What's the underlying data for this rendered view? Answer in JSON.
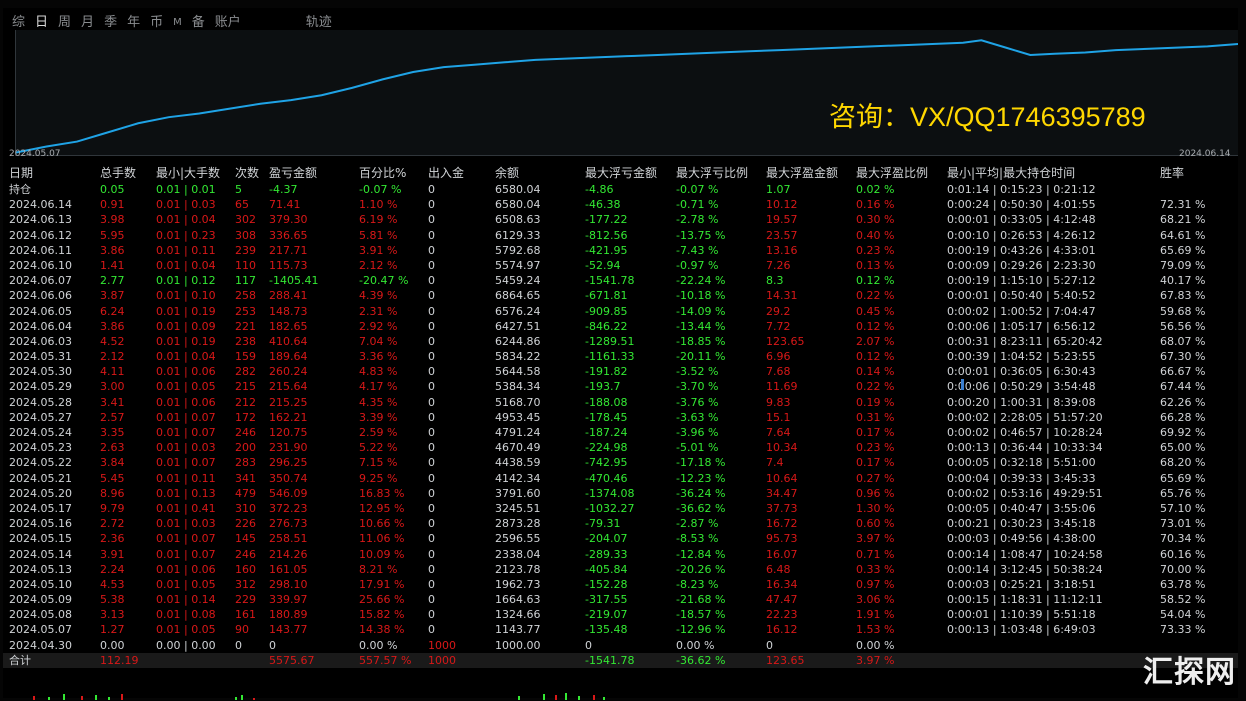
{
  "tabs": [
    {
      "label": "综",
      "active": false
    },
    {
      "label": "日",
      "active": true
    },
    {
      "label": "周",
      "active": false
    },
    {
      "label": "月",
      "active": false
    },
    {
      "label": "季",
      "active": false
    },
    {
      "label": "年",
      "active": false
    },
    {
      "label": "币",
      "active": false
    },
    {
      "label": "M",
      "active": false,
      "small": true
    },
    {
      "label": "备",
      "active": false
    },
    {
      "label": "账户",
      "active": false
    },
    {
      "label": "轨迹",
      "active": false,
      "gap": true
    }
  ],
  "chart": {
    "start_label": "2024.05.07",
    "end_label": "2024.06.14",
    "watermark": "咨询：VX/QQ1746395789",
    "line_color": "#1fa3e6",
    "chart_data": {
      "type": "line",
      "x_range": [
        "2024.05.07",
        "2024.06.14"
      ],
      "ylim": [
        0,
        100
      ],
      "points": [
        [
          0,
          2
        ],
        [
          2.5,
          7
        ],
        [
          5,
          11
        ],
        [
          7,
          17
        ],
        [
          10,
          26
        ],
        [
          12.5,
          31
        ],
        [
          15,
          34
        ],
        [
          17.5,
          38
        ],
        [
          20,
          42
        ],
        [
          22.5,
          45
        ],
        [
          25,
          49
        ],
        [
          27.5,
          55
        ],
        [
          30,
          62
        ],
        [
          32.5,
          68
        ],
        [
          35,
          72
        ],
        [
          37.5,
          74
        ],
        [
          40,
          76
        ],
        [
          42.5,
          78
        ],
        [
          45,
          79
        ],
        [
          47.5,
          80
        ],
        [
          50,
          81
        ],
        [
          52.5,
          82
        ],
        [
          55,
          83
        ],
        [
          57.5,
          84
        ],
        [
          60,
          85
        ],
        [
          62.5,
          86
        ],
        [
          65,
          87
        ],
        [
          67.5,
          88
        ],
        [
          70,
          89
        ],
        [
          72.5,
          90
        ],
        [
          75,
          91
        ],
        [
          77.5,
          92
        ],
        [
          79,
          94
        ],
        [
          81,
          88
        ],
        [
          83,
          82
        ],
        [
          85,
          83
        ],
        [
          87.5,
          84
        ],
        [
          90,
          86
        ],
        [
          92.5,
          87
        ],
        [
          95,
          88
        ],
        [
          97.5,
          89
        ],
        [
          100,
          91
        ]
      ]
    }
  },
  "colors": {
    "profit": "#d81818",
    "loss": "#33e833",
    "neutral": "#d0d3d6"
  },
  "headers": [
    "日期",
    "总手数",
    "最小|大手数",
    "次数",
    "盈亏金额",
    "百分比%",
    "出入金",
    "余额",
    "最大浮亏金额",
    "最大浮亏比例",
    "最大浮盈金额",
    "最大浮盈比例",
    "最小|平均|最大持仓时间",
    "胜率"
  ],
  "rows": [
    {
      "cells": [
        "持仓",
        "0.05",
        "0.01 | 0.01",
        "5",
        "-4.37",
        "-0.07 %",
        "0",
        "6580.04",
        "-4.86",
        "-0.07 %",
        "1.07",
        "0.02 %",
        "0:01:14 | 0:15:23 | 0:21:12",
        ""
      ],
      "tone": "g"
    },
    {
      "cells": [
        "2024.06.14",
        "0.91",
        "0.01 | 0.03",
        "65",
        "71.41",
        "1.10 %",
        "0",
        "6580.04",
        "-46.38",
        "-0.71 %",
        "10.12",
        "0.16 %",
        "0:00:24 | 0:50:30 | 4:01:55",
        "72.31 %"
      ],
      "tone": "r"
    },
    {
      "cells": [
        "2024.06.13",
        "3.98",
        "0.01 | 0.04",
        "302",
        "379.30",
        "6.19 %",
        "0",
        "6508.63",
        "-177.22",
        "-2.78 %",
        "19.57",
        "0.30 %",
        "0:00:01 | 0:33:05 | 4:12:48",
        "68.21 %"
      ],
      "tone": "r"
    },
    {
      "cells": [
        "2024.06.12",
        "5.95",
        "0.01 | 0.23",
        "308",
        "336.65",
        "5.81 %",
        "0",
        "6129.33",
        "-812.56",
        "-13.75 %",
        "23.57",
        "0.40 %",
        "0:00:10 | 0:26:53 | 4:26:12",
        "64.61 %"
      ],
      "tone": "r"
    },
    {
      "cells": [
        "2024.06.11",
        "3.86",
        "0.01 | 0.11",
        "239",
        "217.71",
        "3.91 %",
        "0",
        "5792.68",
        "-421.95",
        "-7.43 %",
        "13.16",
        "0.23 %",
        "0:00:19 | 0:43:26 | 4:33:01",
        "65.69 %"
      ],
      "tone": "r"
    },
    {
      "cells": [
        "2024.06.10",
        "1.41",
        "0.01 | 0.04",
        "110",
        "115.73",
        "2.12 %",
        "0",
        "5574.97",
        "-52.94",
        "-0.97 %",
        "7.26",
        "0.13 %",
        "0:00:09 | 0:29:26 | 2:23:30",
        "79.09 %"
      ],
      "tone": "r"
    },
    {
      "cells": [
        "2024.06.07",
        "2.77",
        "0.01 | 0.12",
        "117",
        "-1405.41",
        "-20.47 %",
        "0",
        "5459.24",
        "-1541.78",
        "-22.24 %",
        "8.3",
        "0.12 %",
        "0:00:19 | 1:15:10 | 5:27:12",
        "40.17 %"
      ],
      "tone": "g"
    },
    {
      "cells": [
        "2024.06.06",
        "3.87",
        "0.01 | 0.10",
        "258",
        "288.41",
        "4.39 %",
        "0",
        "6864.65",
        "-671.81",
        "-10.18 %",
        "14.31",
        "0.22 %",
        "0:00:01 | 0:50:40 | 5:40:52",
        "67.83 %"
      ],
      "tone": "r"
    },
    {
      "cells": [
        "2024.06.05",
        "6.24",
        "0.01 | 0.19",
        "253",
        "148.73",
        "2.31 %",
        "0",
        "6576.24",
        "-909.85",
        "-14.09 %",
        "29.2",
        "0.45 %",
        "0:00:02 | 1:00:52 | 7:04:47",
        "59.68 %"
      ],
      "tone": "r"
    },
    {
      "cells": [
        "2024.06.04",
        "3.86",
        "0.01 | 0.09",
        "221",
        "182.65",
        "2.92 %",
        "0",
        "6427.51",
        "-846.22",
        "-13.44 %",
        "7.72",
        "0.12 %",
        "0:00:06 | 1:05:17 | 6:56:12",
        "56.56 %"
      ],
      "tone": "r"
    },
    {
      "cells": [
        "2024.06.03",
        "4.52",
        "0.01 | 0.19",
        "238",
        "410.64",
        "7.04 %",
        "0",
        "6244.86",
        "-1289.51",
        "-18.85 %",
        "123.65",
        "2.07 %",
        "0:00:31 | 8:23:11 | 65:20:42",
        "68.07 %"
      ],
      "tone": "r"
    },
    {
      "cells": [
        "2024.05.31",
        "2.12",
        "0.01 | 0.04",
        "159",
        "189.64",
        "3.36 %",
        "0",
        "5834.22",
        "-1161.33",
        "-20.11 %",
        "6.96",
        "0.12 %",
        "0:00:39 | 1:04:52 | 5:23:55",
        "67.30 %"
      ],
      "tone": "r"
    },
    {
      "cells": [
        "2024.05.30",
        "4.11",
        "0.01 | 0.06",
        "282",
        "260.24",
        "4.83 %",
        "0",
        "5644.58",
        "-191.82",
        "-3.52 %",
        "7.68",
        "0.14 %",
        "0:00:01 | 0:36:05 | 6:30:43",
        "66.67 %"
      ],
      "tone": "r"
    },
    {
      "cells": [
        "2024.05.29",
        "3.00",
        "0.01 | 0.05",
        "215",
        "215.64",
        "4.17 %",
        "0",
        "5384.34",
        "-193.7",
        "-3.70 %",
        "11.69",
        "0.22 %",
        "0:00:06 | 0:50:29 | 3:54:48",
        "67.44 %"
      ],
      "tone": "r"
    },
    {
      "cells": [
        "2024.05.28",
        "3.41",
        "0.01 | 0.06",
        "212",
        "215.25",
        "4.35 %",
        "0",
        "5168.70",
        "-188.08",
        "-3.76 %",
        "9.83",
        "0.19 %",
        "0:00:20 | 1:00:31 | 8:39:08",
        "62.26 %"
      ],
      "tone": "r"
    },
    {
      "cells": [
        "2024.05.27",
        "2.57",
        "0.01 | 0.07",
        "172",
        "162.21",
        "3.39 %",
        "0",
        "4953.45",
        "-178.45",
        "-3.63 %",
        "15.1",
        "0.31 %",
        "0:00:02 | 2:28:05 | 51:57:20",
        "66.28 %"
      ],
      "tone": "r"
    },
    {
      "cells": [
        "2024.05.24",
        "3.35",
        "0.01 | 0.07",
        "246",
        "120.75",
        "2.59 %",
        "0",
        "4791.24",
        "-187.24",
        "-3.96 %",
        "7.64",
        "0.17 %",
        "0:00:02 | 0:46:57 | 10:28:24",
        "69.92 %"
      ],
      "tone": "r"
    },
    {
      "cells": [
        "2024.05.23",
        "2.63",
        "0.01 | 0.03",
        "200",
        "231.90",
        "5.22 %",
        "0",
        "4670.49",
        "-224.98",
        "-5.01 %",
        "10.34",
        "0.23 %",
        "0:00:13 | 0:36:44 | 10:33:34",
        "65.00 %"
      ],
      "tone": "r"
    },
    {
      "cells": [
        "2024.05.22",
        "3.84",
        "0.01 | 0.07",
        "283",
        "296.25",
        "7.15 %",
        "0",
        "4438.59",
        "-742.95",
        "-17.18 %",
        "7.4",
        "0.17 %",
        "0:00:05 | 0:32:18 | 5:51:00",
        "68.20 %"
      ],
      "tone": "r"
    },
    {
      "cells": [
        "2024.05.21",
        "5.45",
        "0.01 | 0.11",
        "341",
        "350.74",
        "9.25 %",
        "0",
        "4142.34",
        "-470.46",
        "-12.23 %",
        "10.64",
        "0.27 %",
        "0:00:04 | 0:39:33 | 3:45:33",
        "65.69 %"
      ],
      "tone": "r"
    },
    {
      "cells": [
        "2024.05.20",
        "8.96",
        "0.01 | 0.13",
        "479",
        "546.09",
        "16.83 %",
        "0",
        "3791.60",
        "-1374.08",
        "-36.24 %",
        "34.47",
        "0.96 %",
        "0:00:02 | 0:53:16 | 49:29:51",
        "65.76 %"
      ],
      "tone": "r"
    },
    {
      "cells": [
        "2024.05.17",
        "9.79",
        "0.01 | 0.41",
        "310",
        "372.23",
        "12.95 %",
        "0",
        "3245.51",
        "-1032.27",
        "-36.62 %",
        "37.73",
        "1.30 %",
        "0:00:05 | 0:40:47 | 3:55:06",
        "57.10 %"
      ],
      "tone": "r"
    },
    {
      "cells": [
        "2024.05.16",
        "2.72",
        "0.01 | 0.03",
        "226",
        "276.73",
        "10.66 %",
        "0",
        "2873.28",
        "-79.31",
        "-2.87 %",
        "16.72",
        "0.60 %",
        "0:00:21 | 0:30:23 | 3:45:18",
        "73.01 %"
      ],
      "tone": "r"
    },
    {
      "cells": [
        "2024.05.15",
        "2.36",
        "0.01 | 0.07",
        "145",
        "258.51",
        "11.06 %",
        "0",
        "2596.55",
        "-204.07",
        "-8.53 %",
        "95.73",
        "3.97 %",
        "0:00:03 | 0:49:56 | 4:38:00",
        "70.34 %"
      ],
      "tone": "r"
    },
    {
      "cells": [
        "2024.05.14",
        "3.91",
        "0.01 | 0.07",
        "246",
        "214.26",
        "10.09 %",
        "0",
        "2338.04",
        "-289.33",
        "-12.84 %",
        "16.07",
        "0.71 %",
        "0:00:14 | 1:08:47 | 10:24:58",
        "60.16 %"
      ],
      "tone": "r"
    },
    {
      "cells": [
        "2024.05.13",
        "2.24",
        "0.01 | 0.06",
        "160",
        "161.05",
        "8.21 %",
        "0",
        "2123.78",
        "-405.84",
        "-20.26 %",
        "6.48",
        "0.33 %",
        "0:00:14 | 3:12:45 | 50:38:24",
        "70.00 %"
      ],
      "tone": "r"
    },
    {
      "cells": [
        "2024.05.10",
        "4.53",
        "0.01 | 0.05",
        "312",
        "298.10",
        "17.91 %",
        "0",
        "1962.73",
        "-152.28",
        "-8.23 %",
        "16.34",
        "0.97 %",
        "0:00:03 | 0:25:21 | 3:18:51",
        "63.78 %"
      ],
      "tone": "r"
    },
    {
      "cells": [
        "2024.05.09",
        "5.38",
        "0.01 | 0.14",
        "229",
        "339.97",
        "25.66 %",
        "0",
        "1664.63",
        "-317.55",
        "-21.68 %",
        "47.47",
        "3.06 %",
        "0:00:15 | 1:18:31 | 11:12:11",
        "58.52 %"
      ],
      "tone": "r"
    },
    {
      "cells": [
        "2024.05.08",
        "3.13",
        "0.01 | 0.08",
        "161",
        "180.89",
        "15.82 %",
        "0",
        "1324.66",
        "-219.07",
        "-18.57 %",
        "22.23",
        "1.91 %",
        "0:00:01 | 1:10:39 | 5:51:18",
        "54.04 %"
      ],
      "tone": "r"
    },
    {
      "cells": [
        "2024.05.07",
        "1.27",
        "0.01 | 0.05",
        "90",
        "143.77",
        "14.38 %",
        "0",
        "1143.77",
        "-135.48",
        "-12.96 %",
        "16.12",
        "1.53 %",
        "0:00:13 | 1:03:48 | 6:49:03",
        "73.33 %"
      ],
      "tone": "r"
    },
    {
      "cells": [
        "2024.04.30",
        "0.00",
        "0.00 | 0.00",
        "0",
        "0",
        "0.00 %",
        "1000",
        "1000.00",
        "0",
        "0.00 %",
        "0",
        "0.00 %",
        "",
        ""
      ],
      "tone": "w"
    }
  ],
  "total": {
    "cells": [
      "合计",
      "112.19",
      "",
      "",
      "5575.67",
      "557.57 %",
      "1000",
      "",
      "-1541.78",
      "-36.62 %",
      "123.65",
      "3.97 %",
      "",
      ""
    ]
  },
  "logo": "汇探网"
}
